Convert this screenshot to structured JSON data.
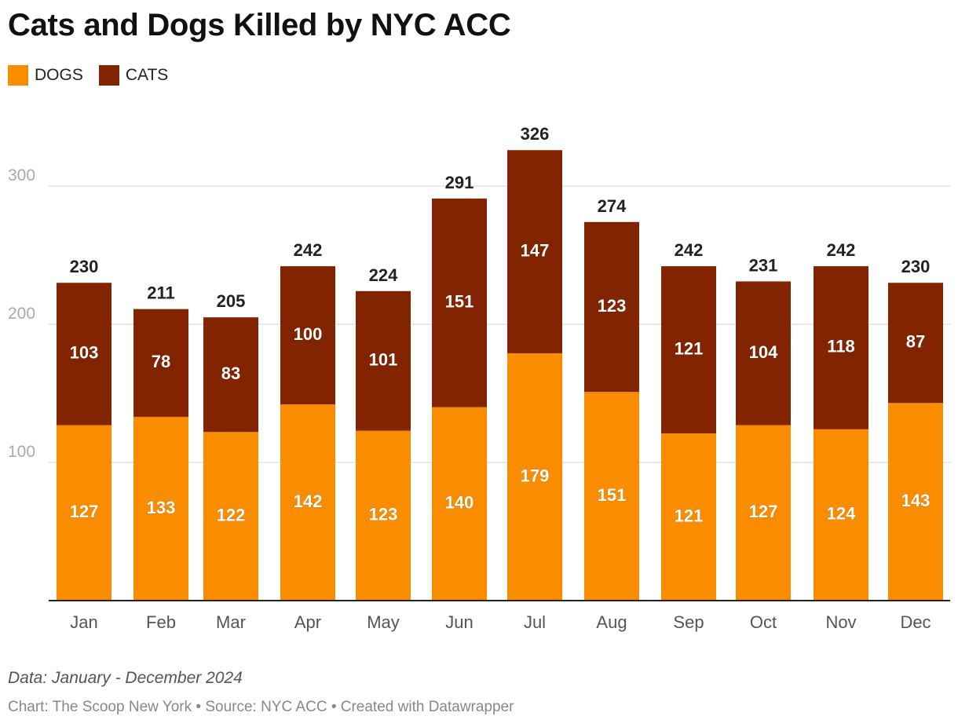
{
  "chart_data": {
    "type": "bar",
    "stacked": true,
    "title": "Cats and Dogs Killed by NYC ACC",
    "categories": [
      "Jan",
      "Feb",
      "Mar",
      "Apr",
      "May",
      "Jun",
      "Jul",
      "Aug",
      "Sep",
      "Oct",
      "Nov",
      "Dec"
    ],
    "series": [
      {
        "name": "DOGS",
        "color": "#FA8C00",
        "values": [
          127,
          133,
          122,
          142,
          123,
          140,
          179,
          151,
          121,
          127,
          124,
          143
        ]
      },
      {
        "name": "CATS",
        "color": "#822400",
        "values": [
          103,
          78,
          83,
          100,
          101,
          151,
          147,
          123,
          121,
          104,
          118,
          87
        ]
      }
    ],
    "totals": [
      230,
      211,
      205,
      242,
      224,
      291,
      326,
      274,
      242,
      231,
      242,
      230
    ],
    "y_ticks": [
      100,
      200,
      300
    ],
    "ylim": [
      0,
      326
    ],
    "xlabel": "",
    "ylabel": "",
    "grid": true,
    "legend_position": "top-left"
  },
  "notes": "Data: January - December 2024",
  "credits": "Chart: The Scoop New York • Source: NYC ACC • Created with Datawrapper"
}
